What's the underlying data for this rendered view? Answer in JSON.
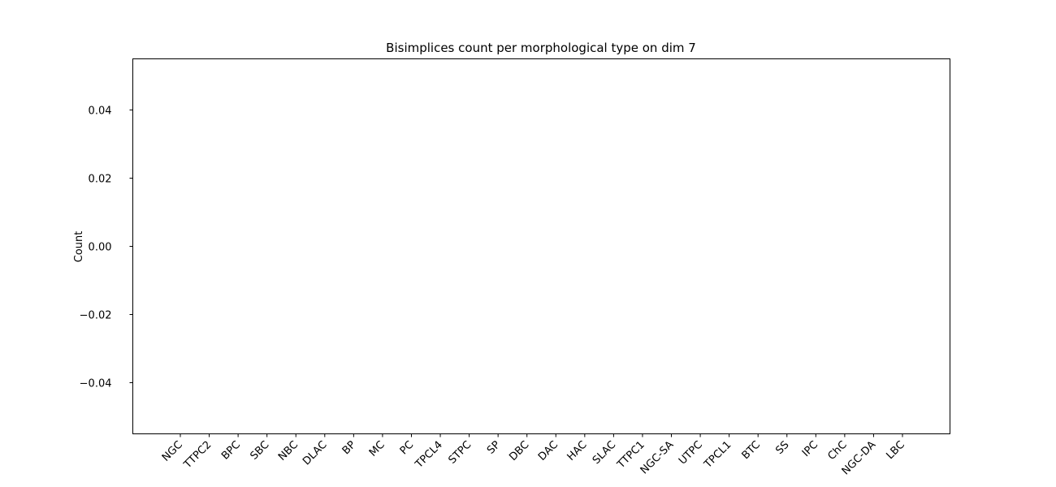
{
  "chart_data": {
    "type": "bar",
    "title": "Bisimplices count per morphological type on dim 7",
    "xlabel": "",
    "ylabel": "Count",
    "categories": [
      "NGC",
      "TTPC2",
      "BPC",
      "SBC",
      "NBC",
      "DLAC",
      "BP",
      "MC",
      "PC",
      "TPCL4",
      "STPC",
      "SP",
      "DBC",
      "DAC",
      "HAC",
      "SLAC",
      "TTPC1",
      "NGC-SA",
      "UTPC",
      "TPCL1",
      "BTC",
      "SS",
      "IPC",
      "ChC",
      "NGC-DA",
      "LBC"
    ],
    "values": [
      0,
      0,
      0,
      0,
      0,
      0,
      0,
      0,
      0,
      0,
      0,
      0,
      0,
      0,
      0,
      0,
      0,
      0,
      0,
      0,
      0,
      0,
      0,
      0,
      0,
      0
    ],
    "ylim": [
      -0.055,
      0.055
    ],
    "yticks": [
      0.04,
      0.02,
      0.0,
      -0.02,
      -0.04
    ],
    "ytick_labels": [
      "0.04",
      "0.02",
      "0.00",
      "−0.02",
      "−0.04"
    ],
    "grid": false,
    "bar_color": "#1f77b4"
  }
}
